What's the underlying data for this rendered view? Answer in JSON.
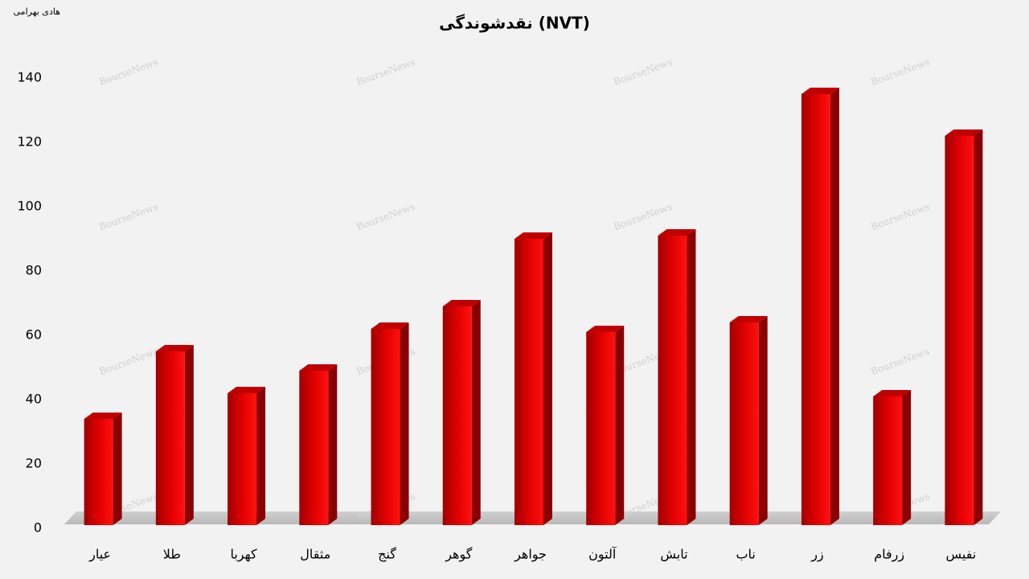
{
  "chart_data": {
    "type": "bar3d",
    "title": "نقدشوندگی (NVT)",
    "author": "هادی بهرامی",
    "watermark": "BourseNews",
    "categories": [
      "عیار",
      "طلا",
      "کهربا",
      "مثقال",
      "گنج",
      "گوهر",
      "جواهر",
      "آلتون",
      "تابش",
      "ناب",
      "زر",
      "زرفام",
      "نفیس"
    ],
    "values": [
      33,
      54,
      41,
      48,
      61,
      68,
      89,
      60,
      90,
      63,
      134,
      40,
      121
    ],
    "color": "#e00000",
    "ylim": [
      0,
      140
    ],
    "yticks": [
      0,
      20,
      40,
      60,
      80,
      100,
      120,
      140
    ],
    "grid": false
  }
}
